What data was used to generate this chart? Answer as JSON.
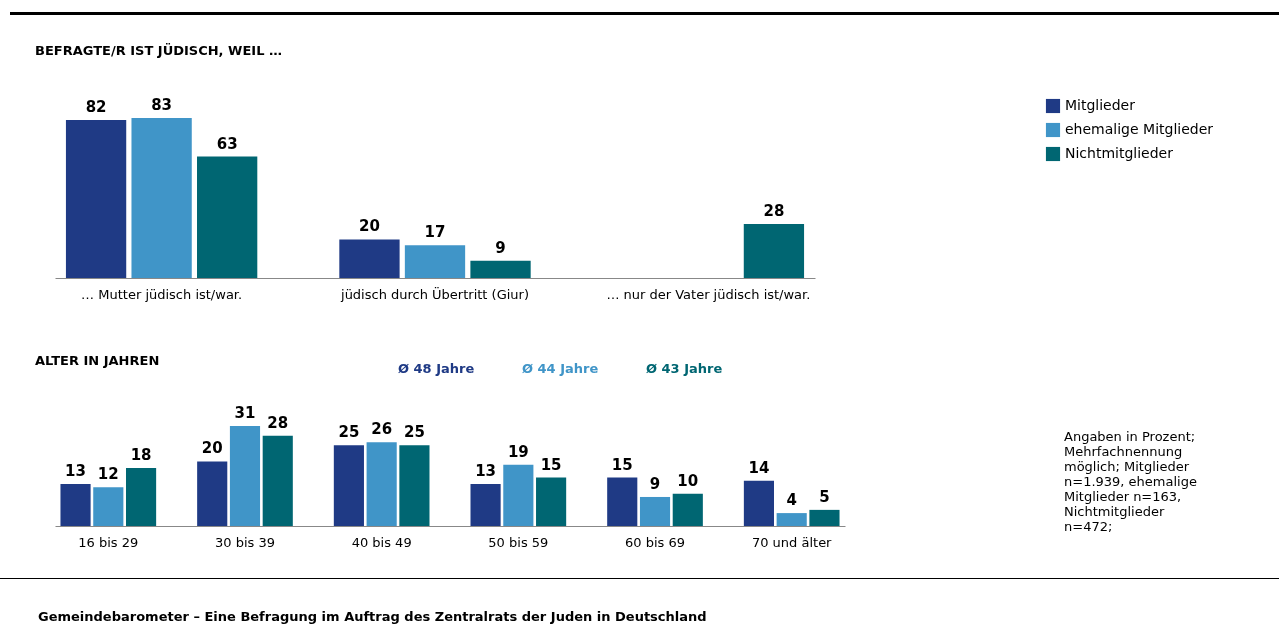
{
  "chart_data": [
    {
      "type": "bar",
      "title": "BEFRAGTE/R IST JÜDISCH, WEIL …",
      "categories": [
        "… Mutter jüdisch ist/war.",
        "jüdisch durch Übertritt (Giur)",
        "… nur der Vater jüdisch ist/war."
      ],
      "series": [
        {
          "name": "Mitglieder",
          "color": "#1f3a85",
          "values": [
            82,
            20,
            null
          ]
        },
        {
          "name": "ehemalige Mitglieder",
          "color": "#4095c8",
          "values": [
            83,
            17,
            null
          ]
        },
        {
          "name": "Nichtmitglieder",
          "color": "#006672",
          "values": [
            63,
            9,
            28
          ]
        }
      ],
      "data_labels": true,
      "legend": "top right",
      "grid": false
    },
    {
      "type": "bar",
      "title": "ALTER IN JAHREN",
      "categories": [
        "16 bis 29",
        "30 bis 39",
        "40 bis 49",
        "50 bis 59",
        "60 bis 69",
        "70 und älter"
      ],
      "series": [
        {
          "color": "#1f3a85",
          "values": [
            13,
            20,
            25,
            13,
            15,
            14
          ]
        },
        {
          "color": "#4095c8",
          "values": [
            12,
            31,
            26,
            19,
            9,
            4
          ]
        },
        {
          "color": "#006672",
          "values": [
            18,
            28,
            25,
            15,
            10,
            5
          ]
        }
      ],
      "data_labels": true,
      "legend": false,
      "grid": false,
      "annotations": [
        "Ø 48 Jahre",
        "Ø 44 Jahre",
        "Ø 43 Jahre",
        "Angaben in Prozent; Mehrfachnennung möglich; Mitglieder n=1.939, ehemalige Mitglieder n=163, Nichtmitglieder n=472;",
        "Gemeindebarometer – Eine Befragung im Auftrag des Zentralrats der Juden in Deutschland"
      ]
    }
  ]
}
